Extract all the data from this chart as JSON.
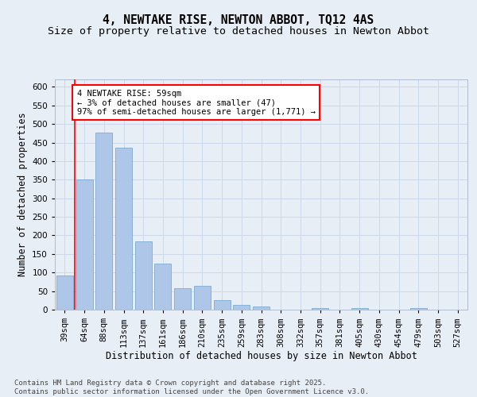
{
  "title": "4, NEWTAKE RISE, NEWTON ABBOT, TQ12 4AS",
  "subtitle": "Size of property relative to detached houses in Newton Abbot",
  "xlabel": "Distribution of detached houses by size in Newton Abbot",
  "ylabel": "Number of detached properties",
  "categories": [
    "39sqm",
    "64sqm",
    "88sqm",
    "113sqm",
    "137sqm",
    "161sqm",
    "186sqm",
    "210sqm",
    "235sqm",
    "259sqm",
    "283sqm",
    "308sqm",
    "332sqm",
    "357sqm",
    "381sqm",
    "405sqm",
    "430sqm",
    "454sqm",
    "479sqm",
    "503sqm",
    "527sqm"
  ],
  "values": [
    93,
    350,
    476,
    436,
    183,
    125,
    57,
    65,
    25,
    13,
    8,
    0,
    0,
    4,
    0,
    5,
    0,
    0,
    5,
    0,
    0
  ],
  "bar_color": "#aec6e8",
  "bar_edge_color": "#6fa0cc",
  "grid_color": "#cdd8ea",
  "bg_color": "#e8eef6",
  "annotation_text_line1": "4 NEWTAKE RISE: 59sqm",
  "annotation_text_line2": "← 3% of detached houses are smaller (47)",
  "annotation_text_line3": "97% of semi-detached houses are larger (1,771) →",
  "annotation_box_facecolor": "white",
  "annotation_box_edgecolor": "red",
  "red_line_x": 0.5,
  "ylim": [
    0,
    620
  ],
  "yticks": [
    0,
    50,
    100,
    150,
    200,
    250,
    300,
    350,
    400,
    450,
    500,
    550,
    600
  ],
  "footer_line1": "Contains HM Land Registry data © Crown copyright and database right 2025.",
  "footer_line2": "Contains public sector information licensed under the Open Government Licence v3.0.",
  "title_fontsize": 10.5,
  "subtitle_fontsize": 9.5,
  "axis_label_fontsize": 8.5,
  "tick_fontsize": 7.5,
  "annotation_fontsize": 7.5,
  "footer_fontsize": 6.5
}
